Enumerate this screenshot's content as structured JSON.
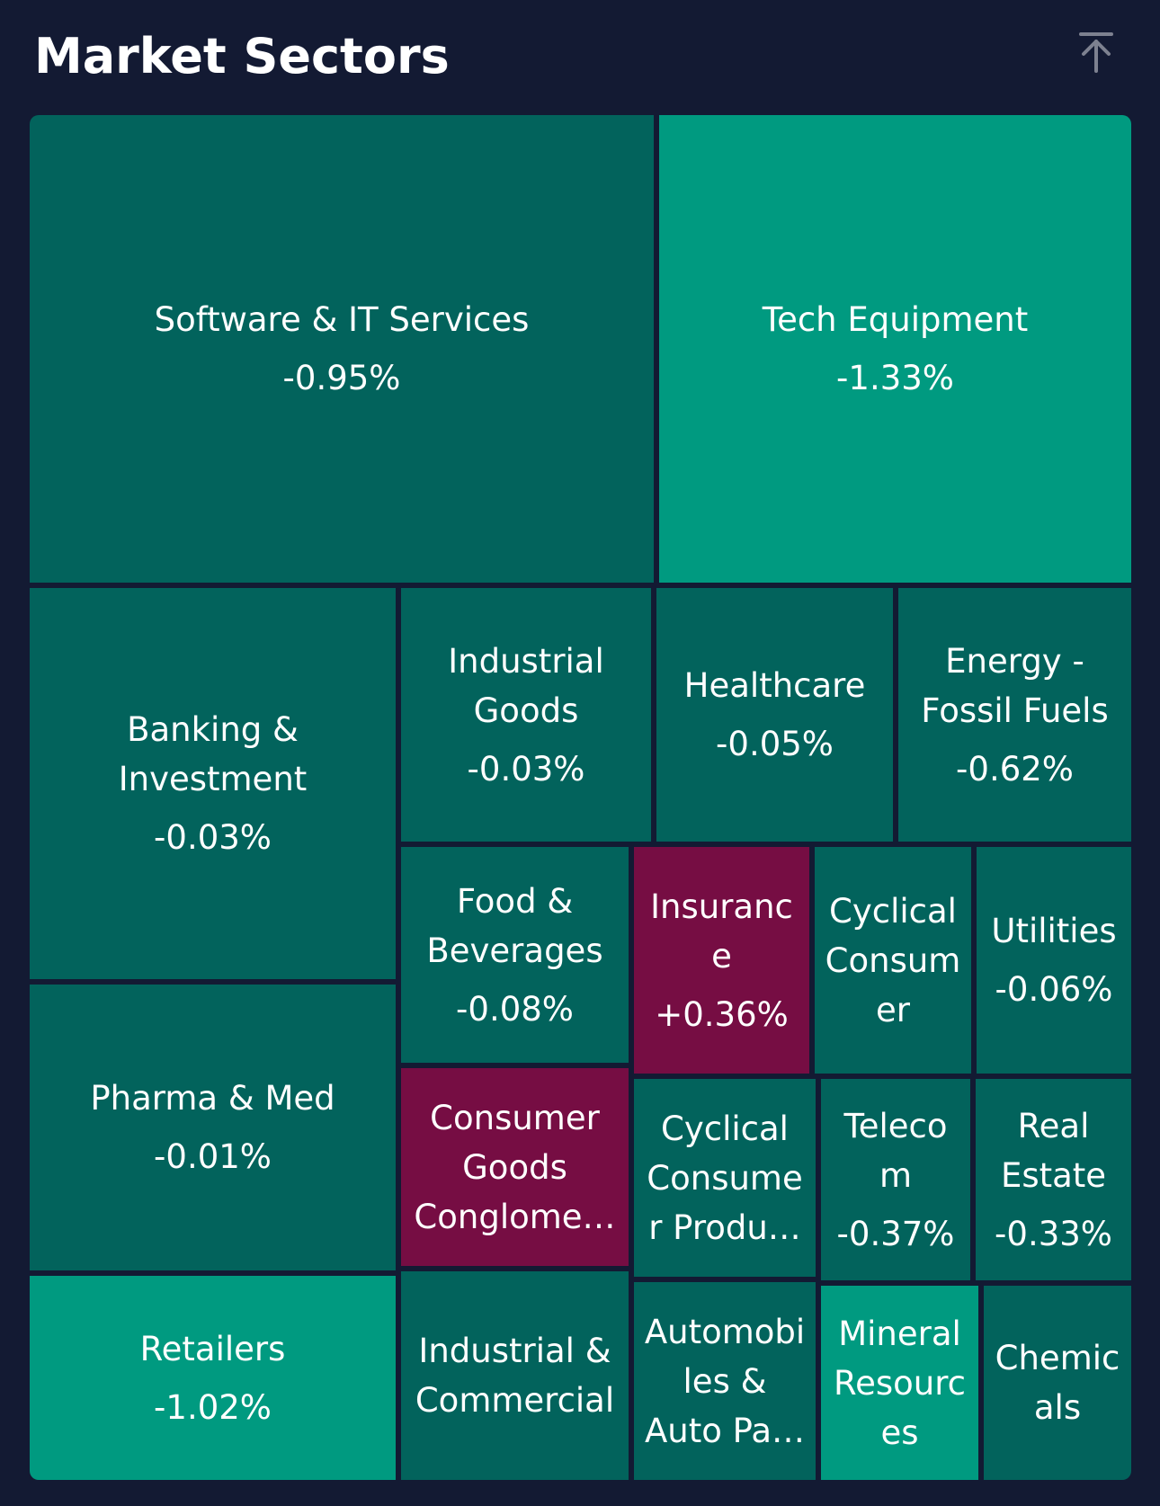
{
  "header": {
    "title": "Market Sectors",
    "scroll_top_icon": "arrow-to-top-icon"
  },
  "colors": {
    "background": "#131a33",
    "dark_teal": "#02635c",
    "bright_teal": "#009a80",
    "magenta": "#760d43",
    "icon": "#7d8190"
  },
  "chart_data": {
    "type": "treemap",
    "title": "Market Sectors",
    "sectors": [
      {
        "name": "Software & IT Services",
        "change": "-0.95%",
        "value_pct": -0.95,
        "color": "#02635c"
      },
      {
        "name": "Tech Equipment",
        "change": "-1.33%",
        "value_pct": -1.33,
        "color": "#009a80"
      },
      {
        "name": "Banking & Investment",
        "change": "-0.03%",
        "value_pct": -0.03,
        "color": "#02635c"
      },
      {
        "name": "Industrial Goods",
        "change": "-0.03%",
        "value_pct": -0.03,
        "color": "#02635c"
      },
      {
        "name": "Healthcare",
        "change": "-0.05%",
        "value_pct": -0.05,
        "color": "#02635c"
      },
      {
        "name": "Energy - Fossil Fuels",
        "change": "-0.62%",
        "value_pct": -0.62,
        "color": "#02635c"
      },
      {
        "name": "Food & Beverages",
        "change": "-0.08%",
        "value_pct": -0.08,
        "color": "#02635c"
      },
      {
        "name": "Insurance",
        "change": "+0.36%",
        "value_pct": 0.36,
        "color": "#760d43"
      },
      {
        "name": "Cyclical Consumer",
        "change": "",
        "value_pct": null,
        "color": "#02635c"
      },
      {
        "name": "Utilities",
        "change": "-0.06%",
        "value_pct": -0.06,
        "color": "#02635c"
      },
      {
        "name": "Pharma & Med",
        "change": "-0.01%",
        "value_pct": -0.01,
        "color": "#02635c"
      },
      {
        "name": "Consumer Goods Conglome…",
        "change": "",
        "value_pct": null,
        "color": "#760d43"
      },
      {
        "name": "Cyclical Consume r Produ…",
        "change": "",
        "value_pct": null,
        "color": "#02635c"
      },
      {
        "name": "Telecom",
        "change": "-0.37%",
        "value_pct": -0.37,
        "color": "#02635c"
      },
      {
        "name": "Real Estate",
        "change": "-0.33%",
        "value_pct": -0.33,
        "color": "#02635c"
      },
      {
        "name": "Retailers",
        "change": "-1.02%",
        "value_pct": -1.02,
        "color": "#009a80"
      },
      {
        "name": "Industrial & Commercial",
        "change": "",
        "value_pct": null,
        "color": "#02635c"
      },
      {
        "name": "Automobi les & Auto Pa…",
        "change": "",
        "value_pct": null,
        "color": "#02635c"
      },
      {
        "name": "Mineral Resourc es",
        "change": "",
        "value_pct": null,
        "color": "#009a80"
      },
      {
        "name": "Chemic als",
        "change": "",
        "value_pct": null,
        "color": "#02635c"
      }
    ]
  }
}
